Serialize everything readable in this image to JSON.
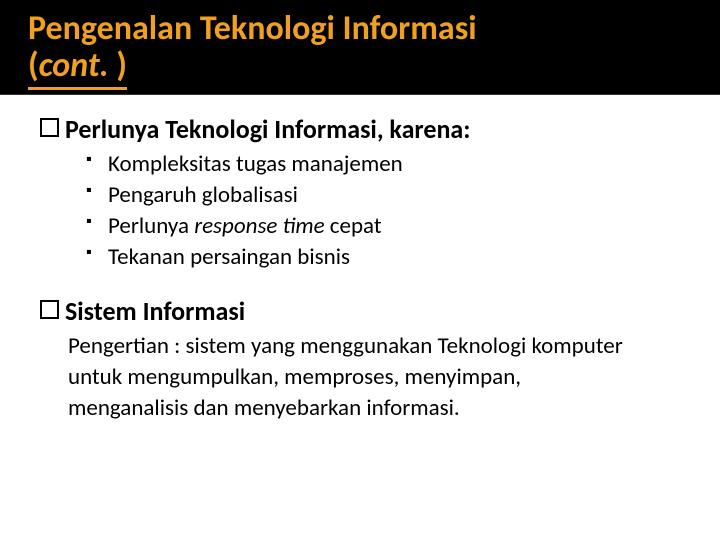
{
  "colors": {
    "title_bg": "#000000",
    "title_fg": "#f0a020",
    "underline": "#f0a020",
    "body_bg": "#ffffff",
    "text": "#000000"
  },
  "typography": {
    "title_fontsize_pt": 26,
    "section_fontsize_pt": 20,
    "body_fontsize_pt": 17,
    "family": "Calibri"
  },
  "title": {
    "line1": "Pengenalan Teknologi Informasi",
    "line2_prefix": "(",
    "line2_italic": "cont.",
    "line2_suffix": " )"
  },
  "section1": {
    "heading": "Perlunya Teknologi Informasi, karena:",
    "bullets": [
      "Kompleksitas tugas manajemen",
      "Pengaruh globalisasi",
      "Perlunya response time cepat",
      "Tekanan persaingan bisnis"
    ]
  },
  "section2": {
    "heading": "Sistem Informasi",
    "paragraph": "Pengertian : sistem yang menggunakan Teknologi komputer untuk mengumpulkan, memproses, menyimpan, menganalisis dan menyebarkan informasi."
  }
}
